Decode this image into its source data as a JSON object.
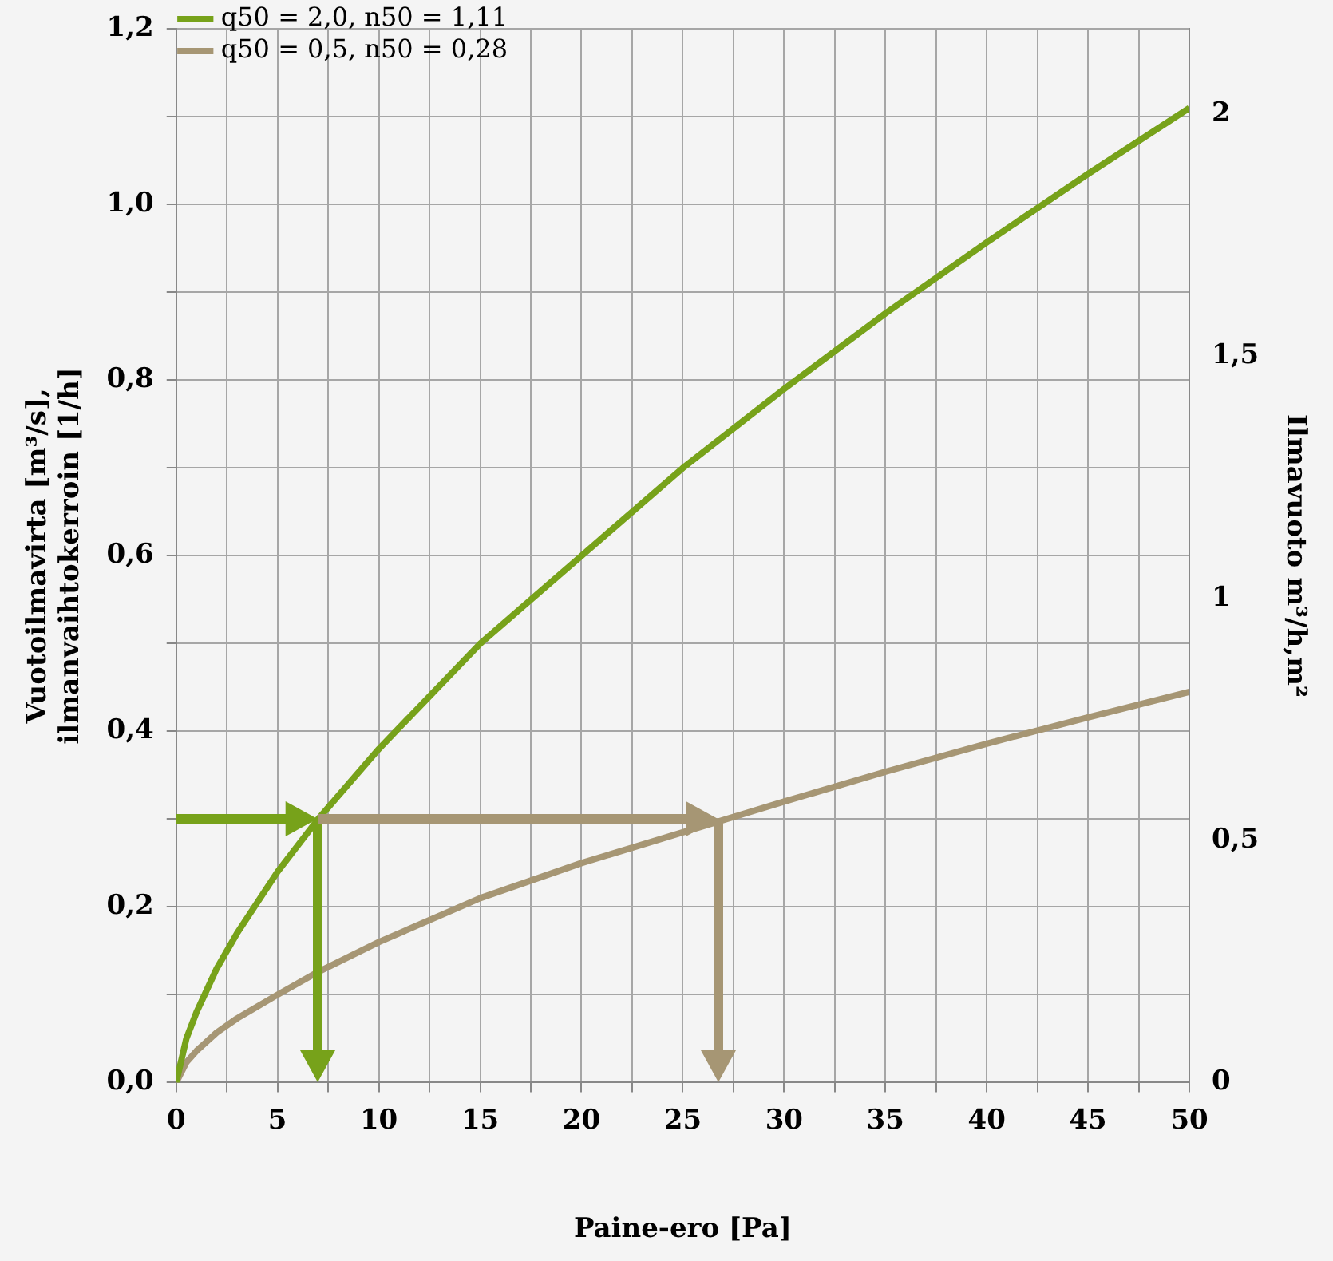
{
  "chart_data": {
    "type": "line",
    "xlabel": "Paine-ero [Pa]",
    "ylabel": "Vuotoilmavirta [m³/s],\nilmanvaihtokerroin [1/h]",
    "y2label": "Ilmavuoto m³/h,m²",
    "xlim": [
      0,
      50
    ],
    "xticks": [
      0,
      {
        "value": 2.5,
        "label": null
      },
      5,
      {
        "value": 7.5,
        "label": null
      },
      10,
      {
        "value": 12.5,
        "label": null
      },
      15,
      {
        "value": 17.5,
        "label": null
      },
      20,
      {
        "value": 22.5,
        "label": null
      },
      25,
      {
        "value": 27.5,
        "label": null
      },
      30,
      {
        "value": 32.5,
        "label": null
      },
      35,
      {
        "value": 37.5,
        "label": null
      },
      40,
      {
        "value": 42.5,
        "label": null
      },
      45,
      {
        "value": 47.5,
        "label": null
      },
      50
    ],
    "ylim": [
      0,
      1.2
    ],
    "yticks": [
      {
        "value": 0,
        "label": "0,0"
      },
      {
        "value": 0.1,
        "label": null
      },
      {
        "value": 0.2,
        "label": "0,2"
      },
      {
        "value": 0.3,
        "label": null
      },
      {
        "value": 0.4,
        "label": "0,4"
      },
      {
        "value": 0.5,
        "label": null
      },
      {
        "value": 0.6,
        "label": "0,6"
      },
      {
        "value": 0.7,
        "label": null
      },
      {
        "value": 0.8,
        "label": "0,8"
      },
      {
        "value": 0.9,
        "label": null
      },
      {
        "value": 1.0,
        "label": "1,0"
      },
      {
        "value": 1.1,
        "label": null
      },
      {
        "value": 1.2,
        "label": "1,2"
      }
    ],
    "y2lim": [
      0,
      2.176
    ],
    "y2ticks": [
      0,
      {
        "value": 0.5,
        "label": "0,5"
      },
      1,
      {
        "value": 1.5,
        "label": "1,5"
      },
      2
    ],
    "grid": true,
    "legend": "top left",
    "marker": "none",
    "line_style": "solid",
    "series": [
      {
        "name": "q50 = 2,0, n50 = 1,11",
        "color": "#77a21a",
        "x": [
          0,
          0.5,
          1,
          2,
          3,
          5,
          7,
          10,
          15,
          20,
          25,
          30,
          35,
          40,
          45,
          50
        ],
        "values": [
          0,
          0.05,
          0.08,
          0.13,
          0.17,
          0.24,
          0.3,
          0.38,
          0.5,
          0.6,
          0.7,
          0.79,
          0.876,
          0.957,
          1.035,
          1.11
        ]
      },
      {
        "name": "q50 = 0,5, n50 = 0,28",
        "color": "#a69674",
        "x": [
          0,
          0.5,
          1,
          2,
          3,
          5,
          7,
          10,
          15,
          20,
          25,
          30,
          35,
          40,
          45,
          50
        ],
        "values": [
          0,
          0.023,
          0.036,
          0.057,
          0.073,
          0.1,
          0.126,
          0.16,
          0.21,
          0.25,
          0.285,
          0.32,
          0.354,
          0.386,
          0.416,
          0.445
        ]
      }
    ]
  }
}
